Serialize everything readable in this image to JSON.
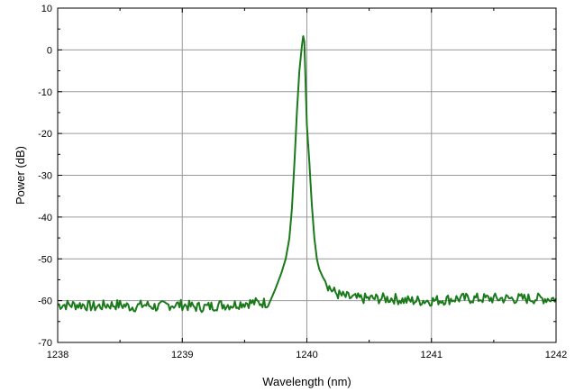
{
  "chart_data": {
    "type": "line",
    "xlabel": "Wavelength (nm)",
    "ylabel": "Power (dB)",
    "xlim": [
      1238,
      1242
    ],
    "ylim": [
      -70,
      10
    ],
    "x_ticks": [
      1238,
      1239,
      1240,
      1241,
      1242
    ],
    "y_ticks": [
      10,
      0,
      -10,
      -20,
      -30,
      -40,
      -50,
      -60,
      -70
    ],
    "x_tick_labels": [
      "1238",
      "1239",
      "1240",
      "1241",
      "1242"
    ],
    "y_tick_labels": [
      "10",
      "0",
      "-10",
      "-20",
      "-30",
      "-40",
      "-50",
      "-60",
      "-70"
    ],
    "grid": true,
    "series": [
      {
        "color": "#1a7a1a",
        "x": [
          1238.0,
          1238.1,
          1238.2,
          1238.3,
          1238.4,
          1238.5,
          1238.6,
          1238.7,
          1238.8,
          1238.9,
          1239.0,
          1239.1,
          1239.2,
          1239.3,
          1239.4,
          1239.5,
          1239.6,
          1239.7,
          1239.75,
          1239.8,
          1239.83,
          1239.86,
          1239.88,
          1239.9,
          1239.92,
          1239.94,
          1239.96,
          1239.97,
          1239.98,
          1239.99,
          1240.0,
          1240.02,
          1240.04,
          1240.06,
          1240.08,
          1240.1,
          1240.13,
          1240.16,
          1240.2,
          1240.25,
          1240.3,
          1240.4,
          1240.5,
          1240.6,
          1240.7,
          1240.8,
          1240.9,
          1241.0,
          1241.1,
          1241.2,
          1241.3,
          1241.4,
          1241.5,
          1241.6,
          1241.7,
          1241.8,
          1241.9,
          1242.0
        ],
        "values": [
          -61,
          -61,
          -61,
          -61.5,
          -61,
          -61,
          -61.5,
          -61,
          -61.5,
          -61,
          -61,
          -61.5,
          -61.5,
          -61,
          -61,
          -60.5,
          -60.5,
          -60.5,
          -57,
          -53,
          -50,
          -45,
          -38,
          -27,
          -15,
          -5,
          1,
          3.3,
          2,
          -8,
          -18,
          -27,
          -37,
          -45,
          -50,
          -52.5,
          -54.5,
          -56,
          -57.5,
          -58.5,
          -59,
          -59.5,
          -59.5,
          -59.5,
          -59.5,
          -60,
          -60,
          -60,
          -59.8,
          -59.5,
          -59.5,
          -59.5,
          -59.5,
          -59.5,
          -59.5,
          -59.5,
          -59.5,
          -59.5
        ]
      }
    ]
  }
}
